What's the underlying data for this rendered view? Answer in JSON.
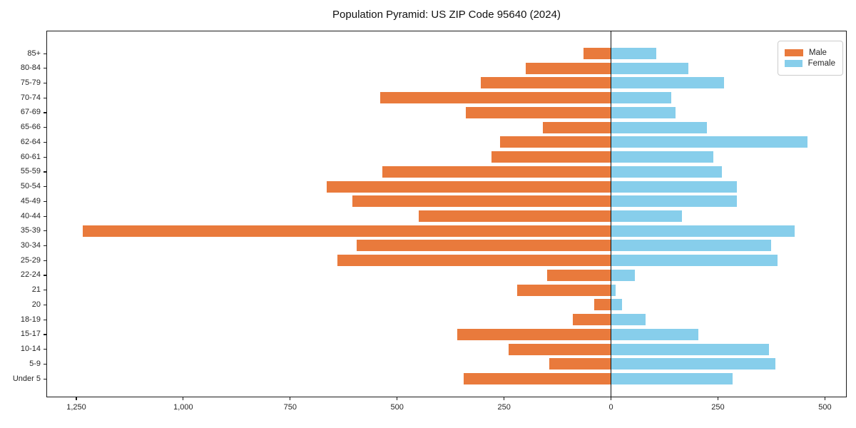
{
  "chart_data": {
    "type": "bar",
    "orientation": "horizontal-population-pyramid",
    "title": "Population Pyramid: US ZIP Code 95640 (2024)",
    "categories": [
      "85+",
      "80-84",
      "75-79",
      "70-74",
      "67-69",
      "65-66",
      "62-64",
      "60-61",
      "55-59",
      "50-54",
      "45-49",
      "40-44",
      "35-39",
      "30-34",
      "25-29",
      "22-24",
      "21",
      "20",
      "18-19",
      "15-17",
      "10-14",
      "5-9",
      "Under 5"
    ],
    "series": [
      {
        "name": "Male",
        "side": "left",
        "color": "#E97A3C",
        "values": [
          65,
          200,
          305,
          540,
          340,
          160,
          260,
          280,
          535,
          665,
          605,
          450,
          1235,
          595,
          640,
          150,
          220,
          40,
          90,
          360,
          240,
          145,
          345
        ]
      },
      {
        "name": "Female",
        "side": "right",
        "color": "#87CEEB",
        "values": [
          105,
          180,
          265,
          140,
          150,
          225,
          460,
          240,
          260,
          295,
          295,
          165,
          430,
          375,
          390,
          55,
          10,
          25,
          80,
          205,
          370,
          385,
          285
        ]
      }
    ],
    "x_axis": {
      "range": [
        -1320,
        551
      ],
      "ticks": [
        {
          "value": -1250,
          "label": "1,250"
        },
        {
          "value": -1000,
          "label": "1,000"
        },
        {
          "value": -750,
          "label": "750"
        },
        {
          "value": -500,
          "label": "500"
        },
        {
          "value": -250,
          "label": "250"
        },
        {
          "value": 0,
          "label": "0"
        },
        {
          "value": 250,
          "label": "250"
        },
        {
          "value": 500,
          "label": "500"
        }
      ]
    },
    "legend": {
      "position": "upper-right",
      "entries": [
        "Male",
        "Female"
      ]
    },
    "grid": false,
    "zero_line": true
  }
}
